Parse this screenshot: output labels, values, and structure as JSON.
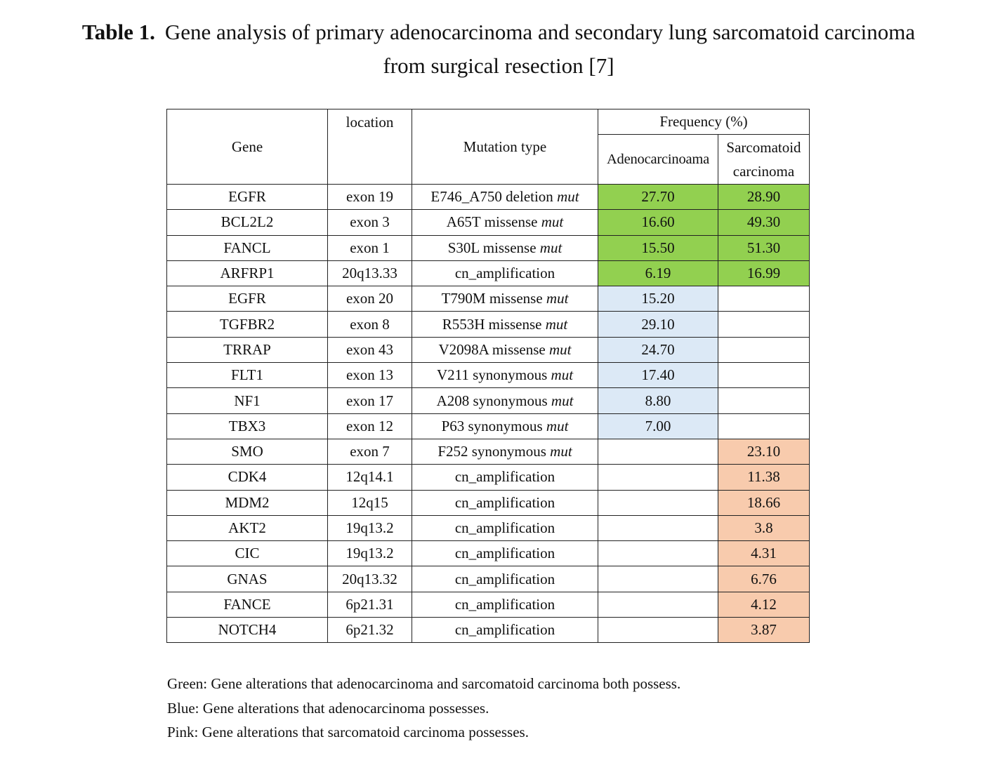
{
  "caption": {
    "label": "Table 1.",
    "title_line1": "Gene analysis of primary adenocarcinoma and secondary lung sarcomatoid carcinoma",
    "title_line2": "from surgical resection [7]"
  },
  "headers": {
    "gene": "Gene",
    "location": "location",
    "mutation_type": "Mutation type",
    "frequency": "Frequency (%)",
    "adenocarcinoma": "Adenocarcinoama",
    "sarcomatoid_line1": "Sarcomatoid",
    "sarcomatoid_line2": "carcinoma"
  },
  "colors": {
    "green": "#92d050",
    "blue": "#dce9f6",
    "pink": "#f8cbad"
  },
  "rows": [
    {
      "gene": "EGFR",
      "location": "exon 19",
      "mutation": "E746_A750 deletion",
      "mut_suffix": "mut",
      "adeno": "27.70",
      "sarco": "28.90",
      "group": "green"
    },
    {
      "gene": "BCL2L2",
      "location": "exon 3",
      "mutation": "A65T missense",
      "mut_suffix": "mut",
      "adeno": "16.60",
      "sarco": "49.30",
      "group": "green"
    },
    {
      "gene": "FANCL",
      "location": "exon 1",
      "mutation": "S30L missense",
      "mut_suffix": "mut",
      "adeno": "15.50",
      "sarco": "51.30",
      "group": "green"
    },
    {
      "gene": "ARFRP1",
      "location": "20q13.33",
      "mutation": "cn_amplification",
      "mut_suffix": "",
      "adeno": "6.19",
      "sarco": "16.99",
      "group": "green"
    },
    {
      "gene": "EGFR",
      "location": "exon 20",
      "mutation": "T790M missense",
      "mut_suffix": "mut",
      "adeno": "15.20",
      "sarco": "",
      "group": "blue"
    },
    {
      "gene": "TGFBR2",
      "location": "exon 8",
      "mutation": "R553H missense",
      "mut_suffix": "mut",
      "adeno": "29.10",
      "sarco": "",
      "group": "blue"
    },
    {
      "gene": "TRRAP",
      "location": "exon 43",
      "mutation": "V2098A missense",
      "mut_suffix": "mut",
      "adeno": "24.70",
      "sarco": "",
      "group": "blue"
    },
    {
      "gene": "FLT1",
      "location": "exon 13",
      "mutation": "V211 synonymous",
      "mut_suffix": "mut",
      "adeno": "17.40",
      "sarco": "",
      "group": "blue"
    },
    {
      "gene": "NF1",
      "location": "exon 17",
      "mutation": "A208 synonymous",
      "mut_suffix": "mut",
      "adeno": "8.80",
      "sarco": "",
      "group": "blue"
    },
    {
      "gene": "TBX3",
      "location": "exon 12",
      "mutation": "P63 synonymous",
      "mut_suffix": "mut",
      "adeno": "7.00",
      "sarco": "",
      "group": "blue"
    },
    {
      "gene": "SMO",
      "location": "exon 7",
      "mutation": "F252 synonymous",
      "mut_suffix": "mut",
      "adeno": "",
      "sarco": "23.10",
      "group": "pink"
    },
    {
      "gene": "CDK4",
      "location": "12q14.1",
      "mutation": "cn_amplification",
      "mut_suffix": "",
      "adeno": "",
      "sarco": "11.38",
      "group": "pink"
    },
    {
      "gene": "MDM2",
      "location": "12q15",
      "mutation": "cn_amplification",
      "mut_suffix": "",
      "adeno": "",
      "sarco": "18.66",
      "group": "pink"
    },
    {
      "gene": "AKT2",
      "location": "19q13.2",
      "mutation": "cn_amplification",
      "mut_suffix": "",
      "adeno": "",
      "sarco": "3.8",
      "group": "pink"
    },
    {
      "gene": "CIC",
      "location": "19q13.2",
      "mutation": "cn_amplification",
      "mut_suffix": "",
      "adeno": "",
      "sarco": "4.31",
      "group": "pink"
    },
    {
      "gene": "GNAS",
      "location": "20q13.32",
      "mutation": "cn_amplification",
      "mut_suffix": "",
      "adeno": "",
      "sarco": "6.76",
      "group": "pink"
    },
    {
      "gene": "FANCE",
      "location": "6p21.31",
      "mutation": "cn_amplification",
      "mut_suffix": "",
      "adeno": "",
      "sarco": "4.12",
      "group": "pink"
    },
    {
      "gene": "NOTCH4",
      "location": "6p21.32",
      "mutation": "cn_amplification",
      "mut_suffix": "",
      "adeno": "",
      "sarco": "3.87",
      "group": "pink"
    }
  ],
  "legend": {
    "green": "Green: Gene alterations that adenocarcinoma and sarcomatoid carcinoma both possess.",
    "blue": "Blue: Gene alterations that adenocarcinoma possesses.",
    "pink": "Pink: Gene alterations that sarcomatoid carcinoma possesses."
  }
}
